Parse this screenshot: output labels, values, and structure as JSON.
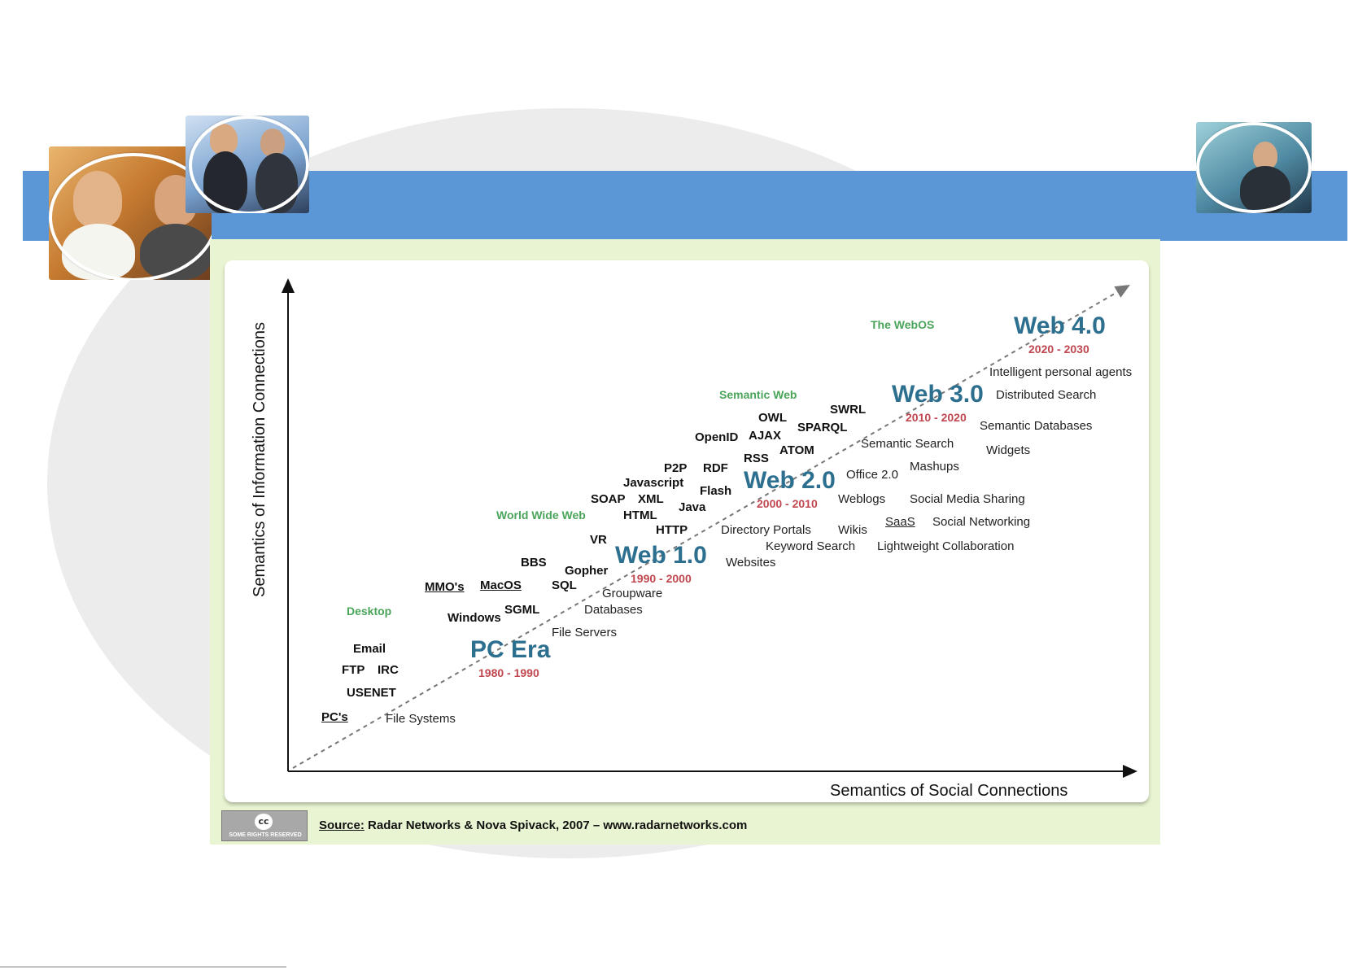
{
  "slide": {
    "colors": {
      "band": "#5b97d6",
      "oval": "#ececec",
      "diagram_bg": "#e9f5d2"
    }
  },
  "diagram": {
    "axis_x_label": "Semantics of Social Connections",
    "axis_y_label": "Semantics of Information Connections",
    "eras": [
      {
        "name": "PC Era",
        "years": "1980 - 1990"
      },
      {
        "name": "Web 1.0",
        "years": "1990 - 2000"
      },
      {
        "name": "Web 2.0",
        "years": "2000 - 2010"
      },
      {
        "name": "Web 3.0",
        "years": "2010 - 2020"
      },
      {
        "name": "Web 4.0",
        "years": "2020 - 2030"
      }
    ],
    "categories": [
      "Desktop",
      "World Wide Web",
      "Semantic Web",
      "The WebOS"
    ],
    "technologies": {
      "desktop": [
        "Email",
        "FTP",
        "IRC",
        "USENET",
        "PC's",
        "MMO's",
        "MacOS",
        "Windows",
        "SGML",
        "BBS",
        "Gopher",
        "SQL"
      ],
      "www": [
        "VR",
        "SOAP",
        "XML",
        "Javascript",
        "P2P",
        "HTML",
        "HTTP",
        "Java",
        "Flash",
        "RDF"
      ],
      "semantic": [
        "OpenID",
        "AJAX",
        "OWL",
        "RSS",
        "SPARQL",
        "ATOM",
        "SWRL"
      ]
    },
    "concepts": {
      "pc": [
        "File Systems",
        "File Servers",
        "Databases",
        "Groupware"
      ],
      "web1": [
        "Websites",
        "Directory Portals",
        "Keyword Search"
      ],
      "web2": [
        "Office 2.0",
        "Weblogs",
        "Wikis",
        "SaaS",
        "Lightweight Collaboration",
        "Social Media Sharing",
        "Social Networking",
        "Mashups"
      ],
      "web3": [
        "Semantic Search",
        "Semantic Databases",
        "Widgets",
        "Distributed Search"
      ],
      "web4": [
        "Intelligent personal agents"
      ]
    },
    "source_label": "Source:",
    "source_text": " Radar Networks & Nova Spivack, 2007 – www.radarnetworks.com",
    "license_icon": "cc",
    "license_text": "SOME RIGHTS RESERVED"
  }
}
